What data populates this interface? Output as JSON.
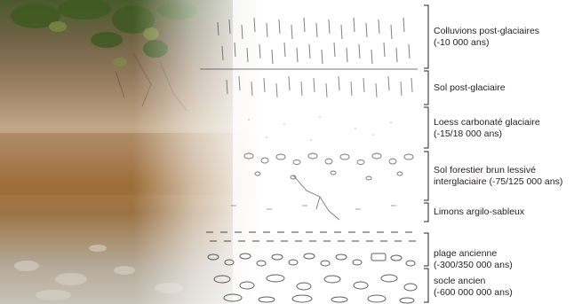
{
  "layers": [
    {
      "name": "Colluvions post-glaciaires",
      "age": "(-10 000 ans)"
    },
    {
      "name": "Sol post-glaciaire",
      "age": ""
    },
    {
      "name": "Loess carbonaté glaciaire",
      "age": "(-15/18 000 ans)"
    },
    {
      "name": "Sol forestier brun lessivé",
      "age": "interglaciaire (-75/125 000 ans)"
    },
    {
      "name": "Limons argilo-sableux",
      "age": ""
    },
    {
      "name": "plage ancienne",
      "age": "(-300/350 000 ans)"
    },
    {
      "name": "socle ancien",
      "age": "(-600 000 000 ans)"
    }
  ],
  "colors": {
    "bracket": "#231f20",
    "text": "#231f20",
    "drawing_ink": "#555555",
    "photo_vegetation": "#4f6b2a",
    "photo_upper_soil": "#8a7256",
    "photo_loess": "#c2a888",
    "photo_brown_soil": "#a7773f",
    "photo_base": "#b5ab9c"
  }
}
